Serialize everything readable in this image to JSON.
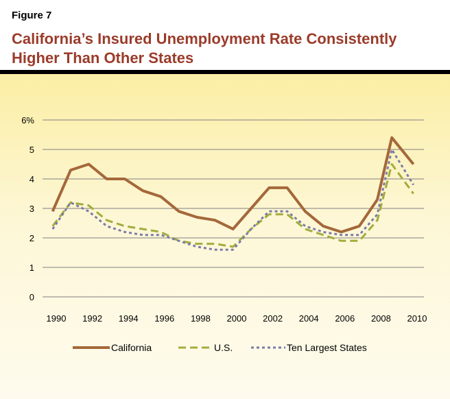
{
  "figure_label": "Figure 7",
  "title_line1": "California’s Insured Unemployment Rate Consistently",
  "title_line2": "Higher Than Other States",
  "colors": {
    "title": "#9b3b2a",
    "california": "#a4683a",
    "us": "#a2ad3c",
    "ten_largest": "#7b7ba7",
    "grid": "#808080"
  },
  "chart_data": {
    "type": "line",
    "ylim": [
      0,
      6
    ],
    "xlim": [
      1990,
      2010
    ],
    "y_ticks": [
      0,
      1,
      2,
      3,
      4,
      5,
      6
    ],
    "y_tick_labels": [
      "0",
      "1",
      "2",
      "3",
      "4",
      "5",
      "6%"
    ],
    "x_ticks": [
      1990,
      1992,
      1994,
      1996,
      1998,
      2000,
      2002,
      2004,
      2006,
      2008,
      2010
    ],
    "x_tick_labels": [
      "1990",
      "1992",
      "1994",
      "1996",
      "1998",
      "2000",
      "2002",
      "2004",
      "2006",
      "2008",
      "2010"
    ],
    "grid": true,
    "legend_position": "bottom",
    "x": [
      1989.8,
      1990.8,
      1991.8,
      1992.8,
      1993.8,
      1994.8,
      1995.8,
      1996.8,
      1997.8,
      1998.8,
      1999.8,
      2000.8,
      2001.8,
      2002.8,
      2003.8,
      2004.8,
      2005.8,
      2006.8,
      2007.8,
      2008.6,
      2009.8
    ],
    "series": [
      {
        "name": "California",
        "style": "solid",
        "values": [
          2.9,
          4.3,
          4.5,
          4.0,
          4.0,
          3.6,
          3.4,
          2.9,
          2.7,
          2.6,
          2.3,
          3.0,
          3.7,
          3.7,
          2.9,
          2.4,
          2.2,
          2.4,
          3.3,
          5.4,
          4.5
        ]
      },
      {
        "name": "U.S.",
        "style": "dash",
        "values": [
          2.4,
          3.2,
          3.1,
          2.6,
          2.4,
          2.3,
          2.2,
          1.9,
          1.8,
          1.8,
          1.7,
          2.3,
          2.8,
          2.8,
          2.3,
          2.1,
          1.9,
          1.9,
          2.6,
          4.5,
          3.5
        ]
      },
      {
        "name": "Ten Largest States",
        "style": "dot",
        "values": [
          2.3,
          3.2,
          2.9,
          2.4,
          2.2,
          2.1,
          2.1,
          1.9,
          1.7,
          1.6,
          1.6,
          2.3,
          2.9,
          2.9,
          2.4,
          2.2,
          2.1,
          2.1,
          2.8,
          5.0,
          3.8
        ]
      }
    ]
  }
}
